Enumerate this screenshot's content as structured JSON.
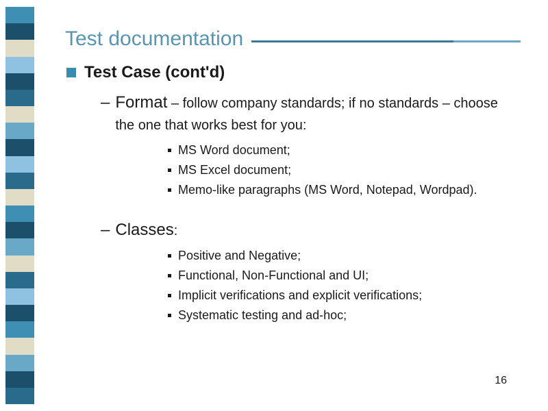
{
  "title": "Test documentation",
  "pageNumber": "16",
  "colors": {
    "titleColor": "#5a95b0",
    "bulletSquare": "#3a8bb0",
    "textColor": "#1a1a1a",
    "lineA": "#3a7a94",
    "lineB": "#6aa8c0",
    "background": "#ffffff"
  },
  "sidebar": {
    "blocks": [
      "#3e8fb3",
      "#1b4f6a",
      "#e0dcc6",
      "#8fc1e0",
      "#1b4f6a",
      "#2a6a8a",
      "#e0dcc6",
      "#6aa8c8",
      "#1b4f6a",
      "#8fc1e0",
      "#2a6a8a",
      "#e0dcc6",
      "#3e8fb3",
      "#1b4f6a",
      "#6aa8c8",
      "#e0dcc6",
      "#2a6a8a",
      "#8fc1e0",
      "#1b4f6a",
      "#3e8fb3",
      "#e0dcc6",
      "#6aa8c8",
      "#1b4f6a",
      "#2a6a8a"
    ]
  },
  "heading": "Test Case (cont'd)",
  "format": {
    "lead": "Format",
    "rest": " – follow company standards; if no standards – choose the one that works best for you:",
    "items": [
      "MS Word document;",
      "MS Excel document;",
      "Memo-like paragraphs (MS Word, Notepad, Wordpad)."
    ]
  },
  "classes": {
    "lead": "Classes",
    "rest": ":",
    "items": [
      "Positive and Negative;",
      "Functional, Non-Functional and UI;",
      "Implicit verifications and explicit verifications;",
      "Systematic testing and ad-hoc;"
    ]
  },
  "typography": {
    "titleSize": 30,
    "l1Size": 24,
    "l2LeadSize": 24,
    "l2RestSize": 20,
    "l3Size": 18,
    "fontFamily": "Arial"
  }
}
